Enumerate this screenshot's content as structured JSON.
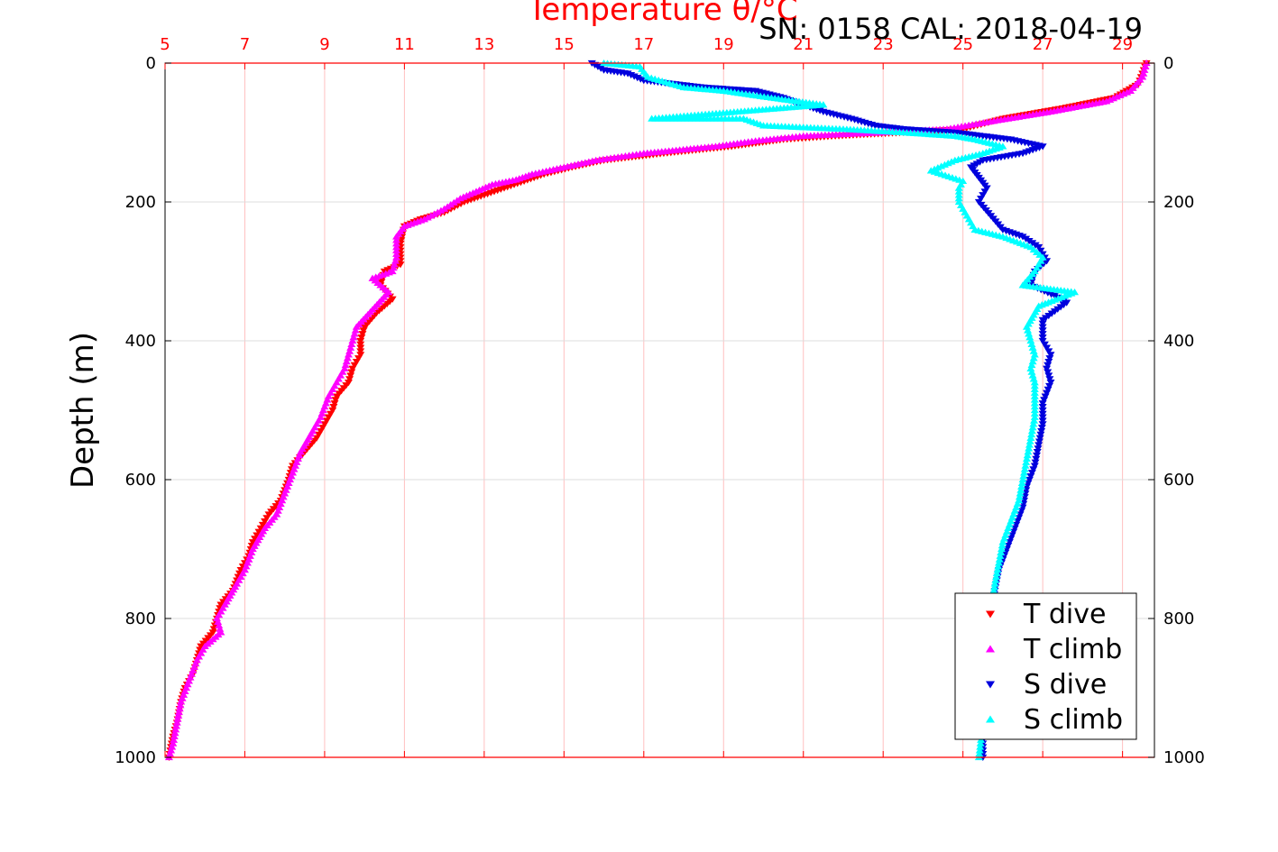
{
  "chart_data": {
    "type": "scatter",
    "title": "Temperature θ/°C",
    "annotation": "SN: 0158  CAL: 2018-04-19",
    "xlabel": "Temperature θ/°C",
    "ylabel": "Depth (m)",
    "xlim": [
      5,
      29.8
    ],
    "ylim": [
      1000,
      0
    ],
    "x_ticks": [
      5,
      7,
      9,
      11,
      13,
      15,
      17,
      19,
      21,
      23,
      25,
      27,
      29
    ],
    "y_ticks": [
      0,
      200,
      400,
      600,
      800,
      1000
    ],
    "y_reversed": true,
    "grid": true,
    "legend_position": "bottom-right",
    "colors": {
      "axis": "#ff0000",
      "grid": "#ffc0c0",
      "grid_h": "#dddddd",
      "t_dive": "#ff0000",
      "t_climb": "#ff00ff",
      "s_dive": "#0000dd",
      "s_climb": "#00ffff"
    },
    "series": [
      {
        "name": "T dive",
        "marker": "triangle-down",
        "color": "#ff0000",
        "points": [
          [
            29.6,
            0
          ],
          [
            29.4,
            30
          ],
          [
            28.8,
            50
          ],
          [
            27.5,
            65
          ],
          [
            26.0,
            80
          ],
          [
            25.0,
            95
          ],
          [
            23.5,
            100
          ],
          [
            21.8,
            105
          ],
          [
            20.5,
            110
          ],
          [
            19.2,
            120
          ],
          [
            17.5,
            130
          ],
          [
            16.0,
            140
          ],
          [
            15.2,
            150
          ],
          [
            14.5,
            160
          ],
          [
            14.0,
            170
          ],
          [
            13.5,
            180
          ],
          [
            13.0,
            190
          ],
          [
            12.5,
            200
          ],
          [
            12.0,
            215
          ],
          [
            11.4,
            225
          ],
          [
            11.0,
            235
          ],
          [
            10.9,
            260
          ],
          [
            10.9,
            290
          ],
          [
            10.5,
            300
          ],
          [
            10.4,
            320
          ],
          [
            10.7,
            340
          ],
          [
            10.3,
            360
          ],
          [
            10.0,
            380
          ],
          [
            9.9,
            400
          ],
          [
            9.9,
            420
          ],
          [
            9.7,
            440
          ],
          [
            9.6,
            460
          ],
          [
            9.3,
            480
          ],
          [
            9.2,
            500
          ],
          [
            9.0,
            520
          ],
          [
            8.8,
            540
          ],
          [
            8.5,
            560
          ],
          [
            8.2,
            580
          ],
          [
            8.1,
            600
          ],
          [
            7.9,
            630
          ],
          [
            7.6,
            650
          ],
          [
            7.4,
            670
          ],
          [
            7.2,
            690
          ],
          [
            7.1,
            710
          ],
          [
            6.9,
            730
          ],
          [
            6.7,
            760
          ],
          [
            6.4,
            780
          ],
          [
            6.3,
            800
          ],
          [
            6.2,
            820
          ],
          [
            5.9,
            840
          ],
          [
            5.8,
            860
          ],
          [
            5.7,
            880
          ],
          [
            5.5,
            900
          ],
          [
            5.4,
            920
          ],
          [
            5.3,
            950
          ],
          [
            5.2,
            970
          ],
          [
            5.1,
            1000
          ]
        ]
      },
      {
        "name": "T climb",
        "marker": "triangle-up",
        "color": "#ff00ff",
        "points": [
          [
            29.6,
            0
          ],
          [
            29.5,
            20
          ],
          [
            29.2,
            40
          ],
          [
            28.6,
            55
          ],
          [
            27.2,
            70
          ],
          [
            25.6,
            85
          ],
          [
            24.6,
            95
          ],
          [
            23.0,
            100
          ],
          [
            21.0,
            105
          ],
          [
            19.8,
            112
          ],
          [
            18.8,
            120
          ],
          [
            17.0,
            130
          ],
          [
            15.8,
            140
          ],
          [
            15.0,
            150
          ],
          [
            14.2,
            160
          ],
          [
            13.8,
            168
          ],
          [
            13.2,
            175
          ],
          [
            12.8,
            185
          ],
          [
            12.4,
            195
          ],
          [
            12.0,
            210
          ],
          [
            11.5,
            225
          ],
          [
            11.0,
            235
          ],
          [
            10.8,
            250
          ],
          [
            10.8,
            280
          ],
          [
            10.7,
            300
          ],
          [
            10.2,
            310
          ],
          [
            10.6,
            330
          ],
          [
            10.2,
            355
          ],
          [
            9.8,
            380
          ],
          [
            9.7,
            400
          ],
          [
            9.6,
            420
          ],
          [
            9.5,
            440
          ],
          [
            9.3,
            460
          ],
          [
            9.1,
            480
          ],
          [
            8.9,
            510
          ],
          [
            8.7,
            530
          ],
          [
            8.4,
            560
          ],
          [
            8.2,
            590
          ],
          [
            8.0,
            620
          ],
          [
            7.8,
            650
          ],
          [
            7.5,
            670
          ],
          [
            7.2,
            700
          ],
          [
            7.0,
            730
          ],
          [
            6.8,
            750
          ],
          [
            6.5,
            780
          ],
          [
            6.3,
            800
          ],
          [
            6.4,
            820
          ],
          [
            6.0,
            840
          ],
          [
            5.8,
            860
          ],
          [
            5.6,
            890
          ],
          [
            5.4,
            920
          ],
          [
            5.3,
            950
          ],
          [
            5.2,
            980
          ],
          [
            5.1,
            1000
          ]
        ]
      },
      {
        "name": "S dive",
        "marker": "triangle-down",
        "color": "#0000dd",
        "points": [
          [
            15.7,
            0
          ],
          [
            16.0,
            10
          ],
          [
            16.6,
            15
          ],
          [
            17.0,
            25
          ],
          [
            18.5,
            35
          ],
          [
            19.8,
            40
          ],
          [
            20.5,
            50
          ],
          [
            21.0,
            60
          ],
          [
            21.5,
            70
          ],
          [
            22.2,
            80
          ],
          [
            22.8,
            90
          ],
          [
            23.5,
            95
          ],
          [
            24.8,
            100
          ],
          [
            25.5,
            105
          ],
          [
            26.2,
            110
          ],
          [
            27.0,
            120
          ],
          [
            26.5,
            130
          ],
          [
            25.5,
            140
          ],
          [
            25.2,
            150
          ],
          [
            25.4,
            165
          ],
          [
            25.6,
            180
          ],
          [
            25.4,
            200
          ],
          [
            25.7,
            220
          ],
          [
            26.0,
            240
          ],
          [
            26.5,
            250
          ],
          [
            26.9,
            265
          ],
          [
            27.1,
            285
          ],
          [
            26.8,
            300
          ],
          [
            26.7,
            320
          ],
          [
            27.3,
            335
          ],
          [
            27.6,
            345
          ],
          [
            27.0,
            370
          ],
          [
            27.0,
            400
          ],
          [
            27.2,
            420
          ],
          [
            27.1,
            440
          ],
          [
            27.2,
            460
          ],
          [
            27.0,
            490
          ],
          [
            27.0,
            520
          ],
          [
            26.9,
            550
          ],
          [
            26.8,
            580
          ],
          [
            26.6,
            610
          ],
          [
            26.5,
            640
          ],
          [
            26.3,
            670
          ],
          [
            26.1,
            700
          ],
          [
            25.9,
            730
          ],
          [
            25.8,
            760
          ],
          [
            25.7,
            800
          ],
          [
            25.6,
            840
          ],
          [
            25.6,
            880
          ],
          [
            25.5,
            920
          ],
          [
            25.5,
            960
          ],
          [
            25.5,
            1000
          ]
        ]
      },
      {
        "name": "S climb",
        "marker": "triangle-up",
        "color": "#00ffff",
        "points": [
          [
            16.0,
            0
          ],
          [
            16.9,
            5
          ],
          [
            17.1,
            20
          ],
          [
            18.0,
            35
          ],
          [
            19.0,
            40
          ],
          [
            20.2,
            50
          ],
          [
            21.5,
            60
          ],
          [
            17.2,
            80
          ],
          [
            19.5,
            80
          ],
          [
            20.0,
            90
          ],
          [
            22.0,
            95
          ],
          [
            23.5,
            100
          ],
          [
            24.8,
            105
          ],
          [
            25.3,
            110
          ],
          [
            26.0,
            120
          ],
          [
            25.5,
            130
          ],
          [
            24.8,
            140
          ],
          [
            24.2,
            155
          ],
          [
            25.0,
            170
          ],
          [
            24.9,
            180
          ],
          [
            24.9,
            200
          ],
          [
            25.1,
            220
          ],
          [
            25.3,
            240
          ],
          [
            26.0,
            250
          ],
          [
            26.7,
            265
          ],
          [
            27.0,
            280
          ],
          [
            26.8,
            300
          ],
          [
            26.5,
            320
          ],
          [
            27.8,
            330
          ],
          [
            26.9,
            350
          ],
          [
            26.6,
            380
          ],
          [
            26.7,
            400
          ],
          [
            26.8,
            420
          ],
          [
            26.7,
            440
          ],
          [
            26.8,
            460
          ],
          [
            26.8,
            480
          ],
          [
            26.8,
            510
          ],
          [
            26.7,
            540
          ],
          [
            26.6,
            570
          ],
          [
            26.5,
            600
          ],
          [
            26.4,
            630
          ],
          [
            26.2,
            660
          ],
          [
            26.0,
            690
          ],
          [
            25.9,
            720
          ],
          [
            25.8,
            750
          ],
          [
            25.7,
            790
          ],
          [
            25.6,
            830
          ],
          [
            25.5,
            870
          ],
          [
            25.5,
            910
          ],
          [
            25.5,
            950
          ],
          [
            25.4,
            1000
          ]
        ]
      }
    ]
  }
}
